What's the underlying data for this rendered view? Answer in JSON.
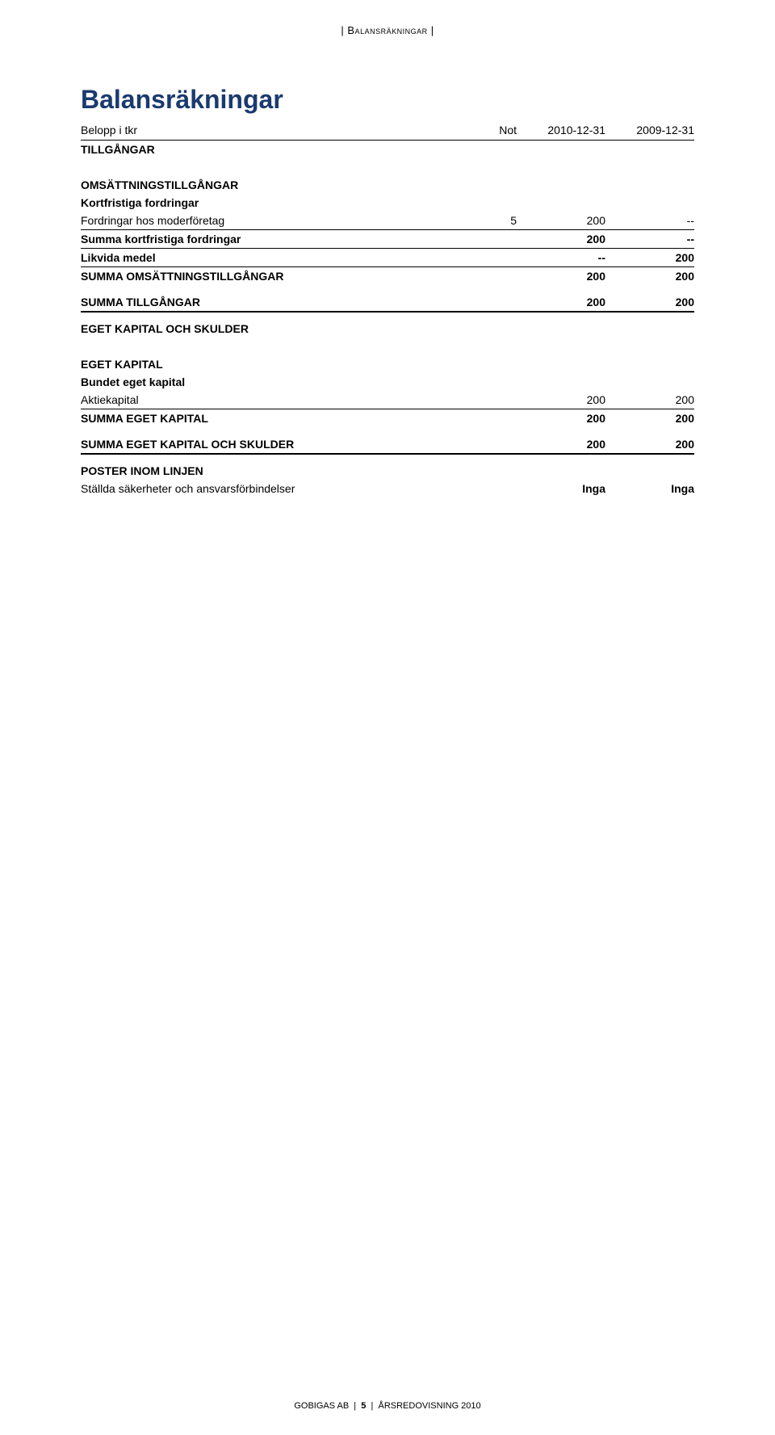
{
  "header": {
    "section_name": "Balansräkningar"
  },
  "title": "Balansräkningar",
  "colhead": {
    "left": "Belopp i tkr",
    "note": "Not",
    "c1": "2010-12-31",
    "c2": "2009-12-31"
  },
  "rows": {
    "tillgangar": "TILLGÅNGAR",
    "omsattning_header": "OMSÄTTNINGSTILLGÅNGAR",
    "kortfristiga_header": "Kortfristiga fordringar",
    "fordringar_moder": {
      "label": "Fordringar hos moderföretag",
      "note": "5",
      "c1": "200",
      "c2": "--"
    },
    "summa_kortfristiga": {
      "label": "Summa kortfristiga fordringar",
      "c1": "200",
      "c2": "--"
    },
    "likvida": {
      "label": "Likvida medel",
      "c1": "--",
      "c2": "200"
    },
    "summa_omsattning": {
      "label": "SUMMA OMSÄTTNINGSTILLGÅNGAR",
      "c1": "200",
      "c2": "200"
    },
    "summa_tillgangar": {
      "label": "SUMMA TILLGÅNGAR",
      "c1": "200",
      "c2": "200"
    },
    "eget_skulder": "EGET KAPITAL OCH SKULDER",
    "eget_kapital": "EGET KAPITAL",
    "bundet": "Bundet eget kapital",
    "aktiekapital": {
      "label": "Aktiekapital",
      "c1": "200",
      "c2": "200"
    },
    "summa_eget": {
      "label": "SUMMA EGET KAPITAL",
      "c1": "200",
      "c2": "200"
    },
    "summa_eget_skulder": {
      "label": "SUMMA EGET KAPITAL OCH SKULDER",
      "c1": "200",
      "c2": "200"
    },
    "poster": "POSTER INOM LINJEN",
    "stallda": {
      "label": "Ställda säkerheter och ansvarsförbindelser",
      "c1": "Inga",
      "c2": "Inga"
    }
  },
  "footer": {
    "company": "GOBIGAS AB",
    "page": "5",
    "report": "ÅRSREDOVISNING 2010"
  }
}
